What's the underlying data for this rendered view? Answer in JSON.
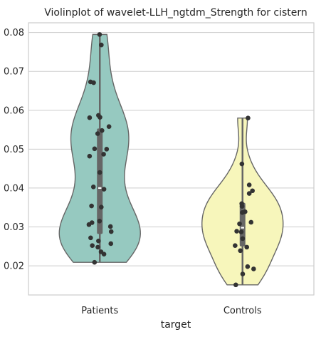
{
  "chart_data": {
    "type": "violin",
    "title": "Violinplot of wavelet-LLH_ngtdm_Strength for cistern",
    "xlabel": "target",
    "ylabel": "",
    "categories": [
      "Patients",
      "Controls"
    ],
    "ylim": [
      0.0125,
      0.0825
    ],
    "yticks": [
      0.02,
      0.03,
      0.04,
      0.05,
      0.06,
      0.07,
      0.08
    ],
    "ytick_labels": [
      "0.02",
      "0.03",
      "0.04",
      "0.05",
      "0.06",
      "0.07",
      "0.08"
    ],
    "grid": "horizontal",
    "colors": [
      "#96c9c0",
      "#f7f6bb"
    ],
    "series": [
      {
        "category": "Patients",
        "color": "#96c9c0",
        "min": 0.0209,
        "q1": 0.0282,
        "median": 0.04,
        "q3": 0.0553,
        "max": 0.0795,
        "points": [
          0.0795,
          0.0768,
          0.0673,
          0.0671,
          0.0587,
          0.0582,
          0.0581,
          0.0558,
          0.0548,
          0.054,
          0.0501,
          0.05,
          0.0487,
          0.0482,
          0.044,
          0.0403,
          0.0397,
          0.0354,
          0.0351,
          0.0315,
          0.0311,
          0.0306,
          0.0301,
          0.0288,
          0.0272,
          0.0264,
          0.0257,
          0.0252,
          0.0248,
          0.0236,
          0.023,
          0.0209
        ]
      },
      {
        "category": "Controls",
        "color": "#f7f6bb",
        "min": 0.0151,
        "q1": 0.025,
        "median": 0.0298,
        "q3": 0.0362,
        "max": 0.058,
        "points": [
          0.058,
          0.0462,
          0.0408,
          0.0393,
          0.0386,
          0.036,
          0.0353,
          0.0339,
          0.0337,
          0.0312,
          0.0308,
          0.0289,
          0.0287,
          0.027,
          0.0252,
          0.0248,
          0.0239,
          0.0198,
          0.0192,
          0.0179,
          0.0151
        ]
      }
    ]
  }
}
